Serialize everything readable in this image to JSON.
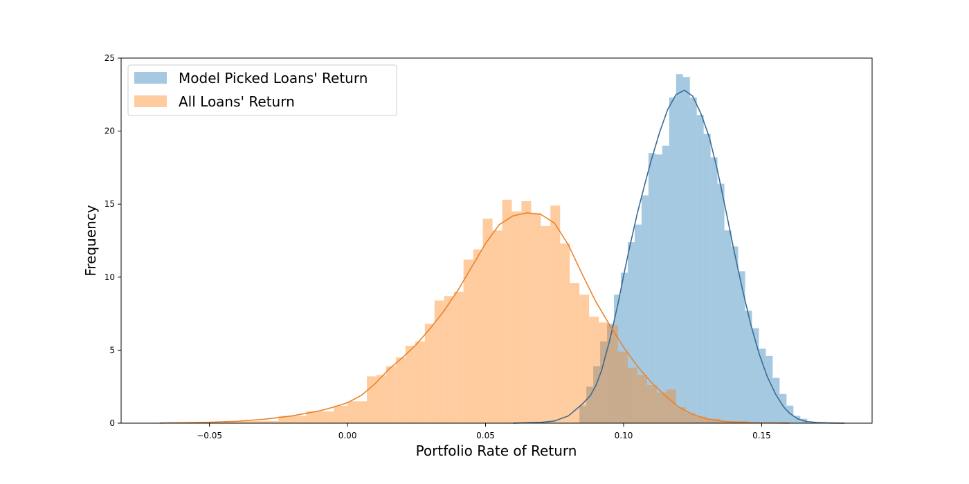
{
  "chart_data": {
    "type": "histogram",
    "xlabel": "Portfolio Rate of Return",
    "ylabel": "Frequency",
    "xlim": [
      -0.082,
      0.19
    ],
    "ylim": [
      0,
      25
    ],
    "xticks": [
      {
        "value": -0.05,
        "label": "−0.05"
      },
      {
        "value": 0.0,
        "label": "0.00"
      },
      {
        "value": 0.05,
        "label": "0.05"
      },
      {
        "value": 0.1,
        "label": "0.10"
      },
      {
        "value": 0.15,
        "label": "0.15"
      }
    ],
    "yticks": [
      {
        "value": 0,
        "label": "0"
      },
      {
        "value": 5,
        "label": "5"
      },
      {
        "value": 10,
        "label": "10"
      },
      {
        "value": 15,
        "label": "15"
      },
      {
        "value": 20,
        "label": "20"
      },
      {
        "value": 25,
        "label": "25"
      }
    ],
    "grid": false,
    "legend_position": "top-left",
    "series": [
      {
        "name": "Model Picked Loans' Return",
        "color": "#1f77b4",
        "bins": [
          {
            "x0": 0.084,
            "x1": 0.0865,
            "y": 1.2
          },
          {
            "x0": 0.0865,
            "x1": 0.089,
            "y": 2.5
          },
          {
            "x0": 0.089,
            "x1": 0.0915,
            "y": 3.9
          },
          {
            "x0": 0.0915,
            "x1": 0.094,
            "y": 5.6
          },
          {
            "x0": 0.094,
            "x1": 0.0965,
            "y": 6.8
          },
          {
            "x0": 0.0965,
            "x1": 0.099,
            "y": 8.8
          },
          {
            "x0": 0.099,
            "x1": 0.1015,
            "y": 10.3
          },
          {
            "x0": 0.1015,
            "x1": 0.104,
            "y": 12.4
          },
          {
            "x0": 0.104,
            "x1": 0.1065,
            "y": 13.6
          },
          {
            "x0": 0.1065,
            "x1": 0.109,
            "y": 15.6
          },
          {
            "x0": 0.109,
            "x1": 0.1115,
            "y": 18.5
          },
          {
            "x0": 0.1115,
            "x1": 0.114,
            "y": 18.4
          },
          {
            "x0": 0.114,
            "x1": 0.1165,
            "y": 19.0
          },
          {
            "x0": 0.1165,
            "x1": 0.119,
            "y": 22.3
          },
          {
            "x0": 0.119,
            "x1": 0.1215,
            "y": 23.9
          },
          {
            "x0": 0.1215,
            "x1": 0.124,
            "y": 23.7
          },
          {
            "x0": 0.124,
            "x1": 0.1265,
            "y": 22.3
          },
          {
            "x0": 0.1265,
            "x1": 0.129,
            "y": 21.1
          },
          {
            "x0": 0.129,
            "x1": 0.1315,
            "y": 19.8
          },
          {
            "x0": 0.1315,
            "x1": 0.134,
            "y": 18.2
          },
          {
            "x0": 0.134,
            "x1": 0.1365,
            "y": 16.4
          },
          {
            "x0": 0.1365,
            "x1": 0.139,
            "y": 13.2
          },
          {
            "x0": 0.139,
            "x1": 0.1415,
            "y": 12.1
          },
          {
            "x0": 0.1415,
            "x1": 0.144,
            "y": 10.4
          },
          {
            "x0": 0.144,
            "x1": 0.1465,
            "y": 7.7
          },
          {
            "x0": 0.1465,
            "x1": 0.149,
            "y": 6.5
          },
          {
            "x0": 0.149,
            "x1": 0.1515,
            "y": 5.1
          },
          {
            "x0": 0.1515,
            "x1": 0.154,
            "y": 4.6
          },
          {
            "x0": 0.154,
            "x1": 0.1565,
            "y": 3.1
          },
          {
            "x0": 0.1565,
            "x1": 0.159,
            "y": 2.0
          },
          {
            "x0": 0.159,
            "x1": 0.1615,
            "y": 1.2
          },
          {
            "x0": 0.1615,
            "x1": 0.164,
            "y": 0.5
          },
          {
            "x0": 0.164,
            "x1": 0.1665,
            "y": 0.3
          }
        ],
        "kde": {
          "x": [
            0.06,
            0.07,
            0.075,
            0.08,
            0.085,
            0.088,
            0.09,
            0.092,
            0.095,
            0.098,
            0.1,
            0.102,
            0.105,
            0.108,
            0.11,
            0.113,
            0.116,
            0.119,
            0.122,
            0.125,
            0.128,
            0.131,
            0.134,
            0.137,
            0.14,
            0.143,
            0.146,
            0.149,
            0.152,
            0.155,
            0.158,
            0.16,
            0.163,
            0.166,
            0.17,
            0.175,
            0.18
          ],
          "y": [
            0,
            0.05,
            0.15,
            0.5,
            1.3,
            1.9,
            2.6,
            3.6,
            5.7,
            8.2,
            10.1,
            11.9,
            14.4,
            16.6,
            18.0,
            19.9,
            21.5,
            22.5,
            22.8,
            22.4,
            21.2,
            19.6,
            17.3,
            14.6,
            11.8,
            9.2,
            6.8,
            4.8,
            3.2,
            2.0,
            1.1,
            0.7,
            0.3,
            0.12,
            0.04,
            0.01,
            0
          ]
        }
      },
      {
        "name": "All Loans' Return",
        "color": "#ff7f0e",
        "bins": [
          {
            "x0": -0.068,
            "x1": -0.045,
            "y": 0.05
          },
          {
            "x0": -0.045,
            "x1": -0.025,
            "y": 0.15
          },
          {
            "x0": -0.025,
            "x1": -0.015,
            "y": 0.5
          },
          {
            "x0": -0.015,
            "x1": -0.005,
            "y": 0.8
          },
          {
            "x0": -0.005,
            "x1": 0.0,
            "y": 1.2
          },
          {
            "x0": 0.0,
            "x1": 0.007,
            "y": 1.5
          },
          {
            "x0": 0.007,
            "x1": 0.0105,
            "y": 3.2
          },
          {
            "x0": 0.0105,
            "x1": 0.014,
            "y": 3.3
          },
          {
            "x0": 0.014,
            "x1": 0.0175,
            "y": 3.9
          },
          {
            "x0": 0.0175,
            "x1": 0.021,
            "y": 4.5
          },
          {
            "x0": 0.021,
            "x1": 0.0245,
            "y": 5.3
          },
          {
            "x0": 0.0245,
            "x1": 0.028,
            "y": 5.6
          },
          {
            "x0": 0.028,
            "x1": 0.0315,
            "y": 6.8
          },
          {
            "x0": 0.0315,
            "x1": 0.035,
            "y": 8.4
          },
          {
            "x0": 0.035,
            "x1": 0.0385,
            "y": 8.7
          },
          {
            "x0": 0.0385,
            "x1": 0.042,
            "y": 9.0
          },
          {
            "x0": 0.042,
            "x1": 0.0455,
            "y": 11.2
          },
          {
            "x0": 0.0455,
            "x1": 0.049,
            "y": 11.9
          },
          {
            "x0": 0.049,
            "x1": 0.0525,
            "y": 14.0
          },
          {
            "x0": 0.0525,
            "x1": 0.056,
            "y": 13.2
          },
          {
            "x0": 0.056,
            "x1": 0.0595,
            "y": 15.3
          },
          {
            "x0": 0.0595,
            "x1": 0.063,
            "y": 14.5
          },
          {
            "x0": 0.063,
            "x1": 0.0665,
            "y": 15.2
          },
          {
            "x0": 0.0665,
            "x1": 0.07,
            "y": 14.4
          },
          {
            "x0": 0.07,
            "x1": 0.0735,
            "y": 13.5
          },
          {
            "x0": 0.0735,
            "x1": 0.077,
            "y": 14.9
          },
          {
            "x0": 0.077,
            "x1": 0.0805,
            "y": 12.3
          },
          {
            "x0": 0.0805,
            "x1": 0.084,
            "y": 9.6
          },
          {
            "x0": 0.084,
            "x1": 0.0875,
            "y": 8.8
          },
          {
            "x0": 0.0875,
            "x1": 0.091,
            "y": 7.3
          },
          {
            "x0": 0.091,
            "x1": 0.0945,
            "y": 6.9
          },
          {
            "x0": 0.0945,
            "x1": 0.098,
            "y": 6.7
          },
          {
            "x0": 0.098,
            "x1": 0.1015,
            "y": 4.9
          },
          {
            "x0": 0.1015,
            "x1": 0.105,
            "y": 3.8
          },
          {
            "x0": 0.105,
            "x1": 0.1085,
            "y": 3.3
          },
          {
            "x0": 0.1085,
            "x1": 0.112,
            "y": 2.6
          },
          {
            "x0": 0.112,
            "x1": 0.1155,
            "y": 2.1
          },
          {
            "x0": 0.1155,
            "x1": 0.119,
            "y": 2.3
          },
          {
            "x0": 0.119,
            "x1": 0.1225,
            "y": 1.1
          },
          {
            "x0": 0.1225,
            "x1": 0.126,
            "y": 0.7
          },
          {
            "x0": 0.126,
            "x1": 0.13,
            "y": 0.45
          },
          {
            "x0": 0.13,
            "x1": 0.135,
            "y": 0.3
          },
          {
            "x0": 0.135,
            "x1": 0.145,
            "y": 0.15
          },
          {
            "x0": 0.145,
            "x1": 0.16,
            "y": 0.05
          }
        ],
        "kde": {
          "x": [
            -0.068,
            -0.06,
            -0.05,
            -0.04,
            -0.03,
            -0.02,
            -0.01,
            -0.005,
            0.0,
            0.005,
            0.01,
            0.015,
            0.02,
            0.025,
            0.03,
            0.035,
            0.04,
            0.045,
            0.05,
            0.055,
            0.06,
            0.065,
            0.07,
            0.075,
            0.08,
            0.085,
            0.09,
            0.095,
            0.1,
            0.105,
            0.11,
            0.115,
            0.12,
            0.125,
            0.13,
            0.135,
            0.14,
            0.15,
            0.16
          ],
          "y": [
            0.01,
            0.03,
            0.06,
            0.13,
            0.27,
            0.5,
            0.85,
            1.1,
            1.4,
            1.9,
            2.7,
            3.7,
            4.5,
            5.4,
            6.5,
            7.7,
            9.1,
            10.7,
            12.3,
            13.6,
            14.2,
            14.4,
            14.3,
            13.7,
            12.2,
            10.2,
            8.3,
            6.7,
            5.2,
            3.9,
            2.8,
            1.9,
            1.1,
            0.6,
            0.3,
            0.15,
            0.07,
            0.02,
            0.005
          ]
        }
      }
    ]
  }
}
